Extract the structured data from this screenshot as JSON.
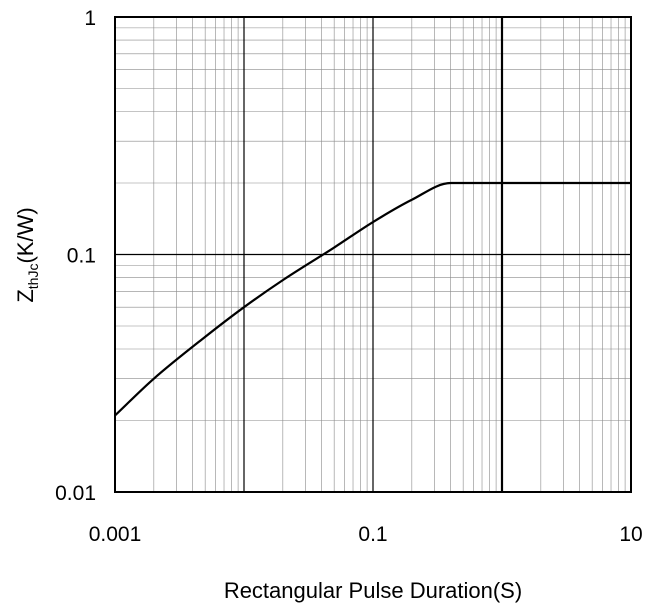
{
  "chart_data": {
    "type": "line",
    "title": "",
    "xlabel": "Rectangular Pulse Duration(S)",
    "ylabel": {
      "main": "Z",
      "subscript": "thJc",
      "suffix": "(K/W)"
    },
    "x_scale": "log",
    "y_scale": "log",
    "xlim": [
      0.001,
      10
    ],
    "ylim": [
      0.01,
      1
    ],
    "x_ticks": [
      {
        "value": 0.001,
        "label": "0.001"
      },
      {
        "value": 0.1,
        "label": "0.1"
      },
      {
        "value": 10,
        "label": "10"
      }
    ],
    "y_ticks": [
      {
        "value": 0.01,
        "label": "0.01"
      },
      {
        "value": 0.1,
        "label": "0.1"
      },
      {
        "value": 1,
        "label": "1"
      }
    ],
    "grid": true,
    "emphasized_vertical_lines": [
      1
    ],
    "series": [
      {
        "x": [
          0.001,
          0.002,
          0.005,
          0.01,
          0.02,
          0.05,
          0.1,
          0.2,
          0.4,
          0.6,
          1,
          2,
          5,
          10
        ],
        "y": [
          0.021,
          0.03,
          0.045,
          0.06,
          0.078,
          0.107,
          0.137,
          0.17,
          0.2,
          0.2,
          0.2,
          0.2,
          0.2,
          0.2
        ]
      }
    ]
  }
}
